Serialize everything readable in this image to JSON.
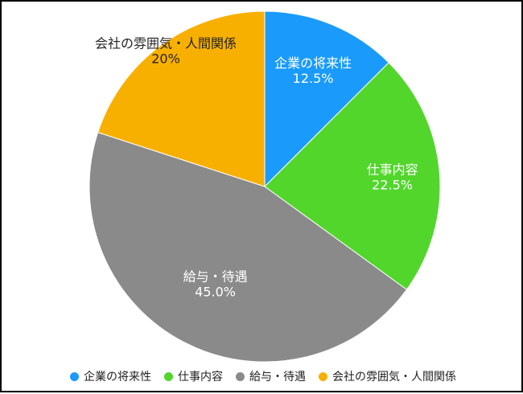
{
  "chart_data": {
    "type": "pie",
    "slices": [
      {
        "label": "企業の将来性",
        "value": 12.5,
        "display": "12.5%",
        "color": "#1a9bfc"
      },
      {
        "label": "仕事内容",
        "value": 22.5,
        "display": "22.5%",
        "color": "#52d62c"
      },
      {
        "label": "給与・待遇",
        "value": 45.0,
        "display": "45.0%",
        "color": "#8a8a8a"
      },
      {
        "label": "会社の雰囲気・人間関係",
        "value": 20,
        "display": "20%",
        "color": "#f8b000"
      }
    ],
    "start": "12 o'clock",
    "direction": "clockwise",
    "legend_position": "bottom"
  },
  "legend": {
    "items": [
      {
        "label": "企業の将来性",
        "color": "#1a9bfc"
      },
      {
        "label": "仕事内容",
        "color": "#52d62c"
      },
      {
        "label": "給与・待遇",
        "color": "#8a8a8a"
      },
      {
        "label": "会社の雰囲気・人間関係",
        "color": "#f8b000"
      }
    ]
  }
}
